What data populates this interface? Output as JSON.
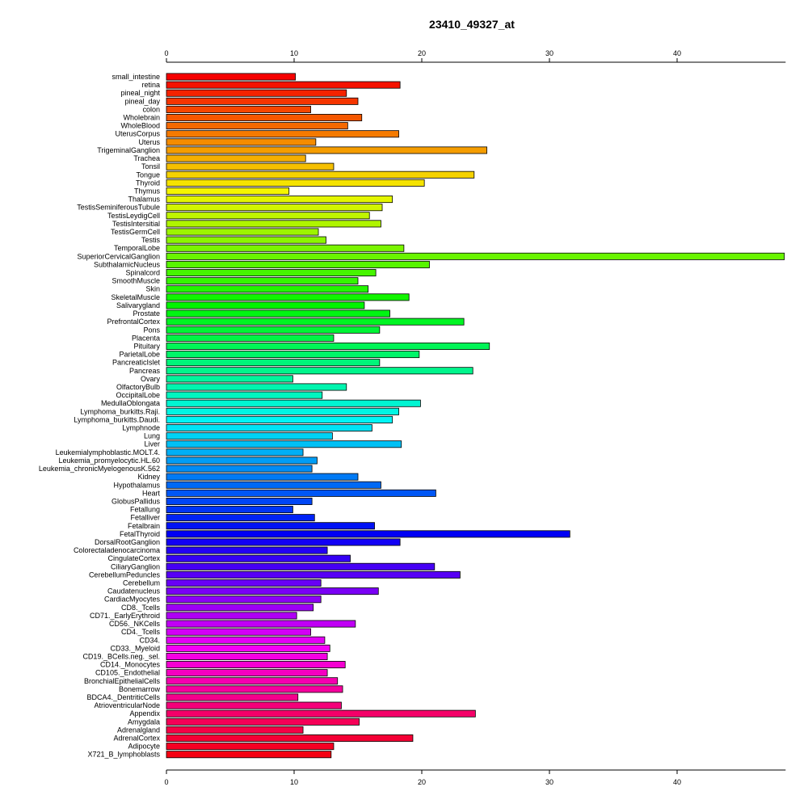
{
  "chart_data": {
    "type": "bar",
    "orientation": "horizontal",
    "title": "23410_49327_at",
    "xlabel": "",
    "ylabel": "",
    "xlim": [
      0,
      48.5
    ],
    "xticks": [
      0,
      10,
      20,
      30,
      40
    ],
    "grid": false,
    "legend": "none",
    "color_scheme": "rainbow",
    "categories": [
      "small_intestine",
      "retina",
      "pineal_night",
      "pineal_day",
      "colon",
      "Wholebrain",
      "WholeBlood",
      "UterusCorpus",
      "Uterus",
      "TrigeminalGanglion",
      "Trachea",
      "Tonsil",
      "Tongue",
      "Thyroid",
      "Thymus",
      "Thalamus",
      "TestisSeminiferousTubule",
      "TestisLeydigCell",
      "TestisIntersitial",
      "TestisGermCell",
      "Testis",
      "TemporalLobe",
      "SuperiorCervicalGanglion",
      "SubthalamicNucleus",
      "Spinalcord",
      "SmoothMuscle",
      "Skin",
      "SkeletalMuscle",
      "Salivarygland",
      "Prostate",
      "PrefrontalCortex",
      "Pons",
      "Placenta",
      "Pituitary",
      "ParietalLobe",
      "PancreaticIslet",
      "Pancreas",
      "Ovary",
      "OlfactoryBulb",
      "OccipitalLobe",
      "MedullaOblongata",
      "Lymphoma_burkitts.Raji.",
      "Lymphoma_burkitts.Daudi.",
      "Lymphnode",
      "Lung",
      "Liver",
      "Leukemialymphoblastic.MOLT.4.",
      "Leukemia_promyelocytic.HL.60",
      "Leukemia_chronicMyelogenousK.562",
      "Kidney",
      "Hypothalamus",
      "Heart",
      "GlobusPallidus",
      "Fetallung",
      "Fetalliver",
      "Fetalbrain",
      "FetalThyroid",
      "DorsalRootGanglion",
      "Colorectaladenocarcinoma",
      "CingulateCortex",
      "CiliaryGanglion",
      "CerebellumPeduncles",
      "Cerebellum",
      "Caudatenucleus",
      "CardiacMyocytes",
      "CD8._Tcells",
      "CD71._EarlyErythroid",
      "CD56._NKCells",
      "CD4._Tcells",
      "CD34.",
      "CD33._Myeloid",
      "CD19._BCells.neg._sel.",
      "CD14._Monocytes",
      "CD105._Endothelial",
      "BronchialEpithelialCells",
      "Bonemarrow",
      "BDCA4._DentriticCells",
      "AtrioventricularNode",
      "Appendix",
      "Amygdala",
      "Adrenalgland",
      "AdrenalCortex",
      "Adipocyte",
      "X721_B_lymphoblasts"
    ],
    "values": [
      10.1,
      18.3,
      14.1,
      15.0,
      11.3,
      15.3,
      14.2,
      18.2,
      11.7,
      25.1,
      10.9,
      13.1,
      24.1,
      20.2,
      9.6,
      17.7,
      16.9,
      15.9,
      16.8,
      11.9,
      12.5,
      18.6,
      48.4,
      20.6,
      16.4,
      15.0,
      15.8,
      19.0,
      15.5,
      17.5,
      23.3,
      16.7,
      13.1,
      25.3,
      19.8,
      16.7,
      24.0,
      9.9,
      14.1,
      12.2,
      19.9,
      18.2,
      17.7,
      16.1,
      13.0,
      18.4,
      10.7,
      11.8,
      11.4,
      15.0,
      16.8,
      21.1,
      11.4,
      9.9,
      11.6,
      16.3,
      31.6,
      18.3,
      12.6,
      14.4,
      21.0,
      23.0,
      12.1,
      16.6,
      12.1,
      11.5,
      10.2,
      14.8,
      11.3,
      12.4,
      12.8,
      12.6,
      14.0,
      12.6,
      13.4,
      13.8,
      10.3,
      13.7,
      24.2,
      15.1,
      10.7,
      19.3,
      13.1,
      12.9
    ]
  }
}
